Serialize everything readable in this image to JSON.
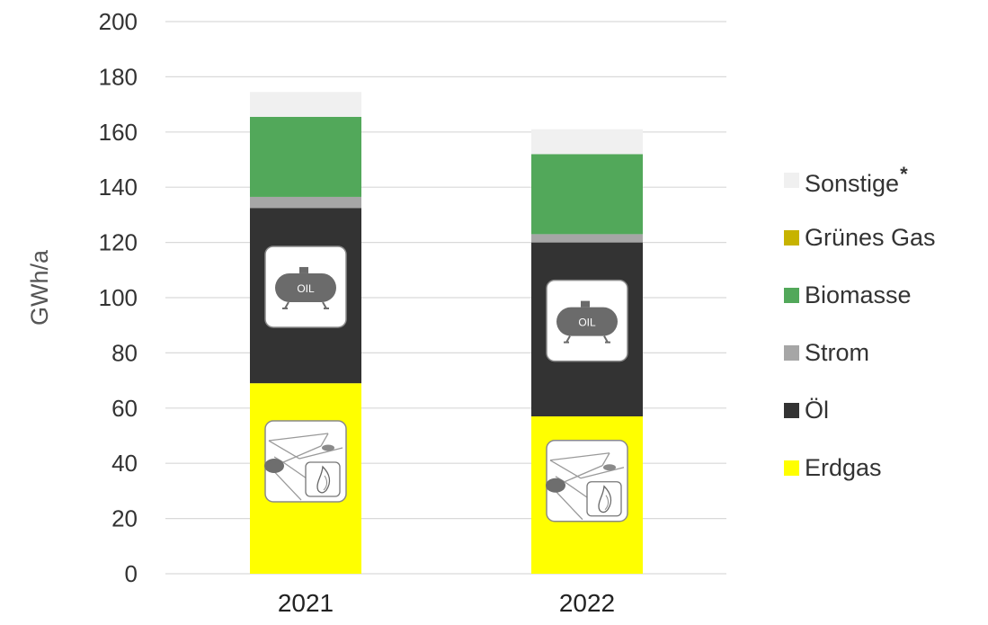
{
  "chart_data": {
    "type": "bar",
    "stacked": true,
    "categories": [
      "2021",
      "2022"
    ],
    "ylabel": "GWh/a",
    "ylim": [
      0,
      200
    ],
    "yticks": [
      0,
      20,
      40,
      60,
      80,
      100,
      120,
      140,
      160,
      180,
      200
    ],
    "grid": true,
    "legend_position": "right",
    "series": [
      {
        "name": "Erdgas",
        "color": "#ffff00",
        "values": [
          69,
          57
        ]
      },
      {
        "name": "Öl",
        "color": "#333333",
        "values": [
          63.5,
          63
        ]
      },
      {
        "name": "Strom",
        "color": "#a6a6a6",
        "values": [
          4,
          3
        ]
      },
      {
        "name": "Biomasse",
        "color": "#52a85a",
        "values": [
          29,
          29
        ]
      },
      {
        "name": "Grünes Gas",
        "color": "#c7b300",
        "values": [
          0,
          0
        ]
      },
      {
        "name": "Sonstige",
        "color": "#f0f0f0",
        "values": [
          9,
          9
        ]
      }
    ],
    "legend_order": [
      "Sonstige",
      "Grünes Gas",
      "Biomasse",
      "Strom",
      "Öl",
      "Erdgas"
    ],
    "legend_footnote_mark": "*",
    "icons": [
      "oil-tank-icon",
      "gas-network-flame-icon"
    ],
    "oil_icon_text": "OIL"
  }
}
